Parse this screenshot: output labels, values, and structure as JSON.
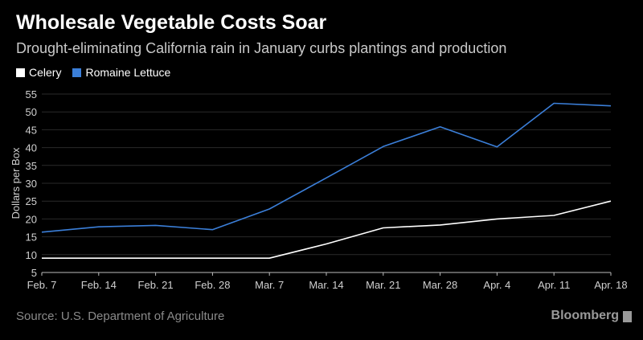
{
  "title": "Wholesale Vegetable Costs Soar",
  "subtitle": "Drought-eliminating California rain in January curbs plantings and production",
  "source": "Source: U.S. Department of Agriculture",
  "brand": "Bloomberg",
  "colors": {
    "background": "#000000",
    "celery": "#ffffff",
    "romaine": "#3b7fd9",
    "grid": "#2a2a2a"
  },
  "chart_data": {
    "type": "line",
    "title": "Wholesale Vegetable Costs Soar",
    "subtitle": "Drought-eliminating California rain in January curbs plantings and production",
    "xlabel": "",
    "ylabel": "Dollars per Box",
    "x": [
      "Feb. 7",
      "Feb. 14",
      "Feb. 21",
      "Feb. 28",
      "Mar. 7",
      "Mar. 14",
      "Mar. 21",
      "Mar. 28",
      "Apr. 4",
      "Apr. 11",
      "Apr. 18"
    ],
    "series": [
      {
        "name": "Celery",
        "color": "#ffffff",
        "values": [
          9,
          9,
          9,
          9,
          9,
          13,
          17.5,
          18.3,
          20,
          21,
          25
        ]
      },
      {
        "name": "Romaine Lettuce",
        "color": "#3b7fd9",
        "values": [
          16.3,
          17.8,
          18.2,
          17,
          22.8,
          31.5,
          40.3,
          45.8,
          40.2,
          52.4,
          51.7
        ]
      }
    ],
    "ylim": [
      5,
      55
    ],
    "yticks": [
      5,
      10,
      15,
      20,
      25,
      30,
      35,
      40,
      45,
      50,
      55
    ],
    "grid": true,
    "legend_position": "top-left"
  }
}
